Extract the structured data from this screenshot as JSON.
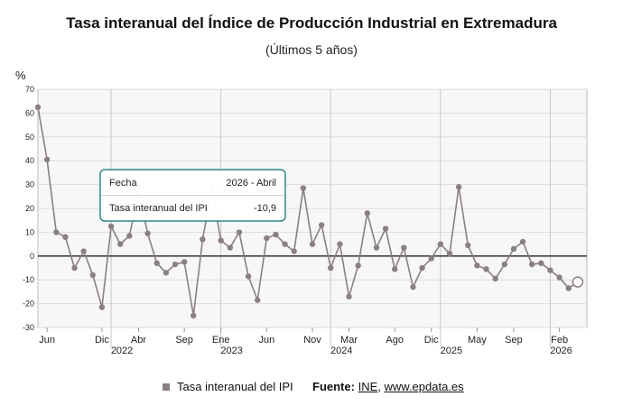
{
  "header": {
    "title": "Tasa interanual del Índice de Producción Industrial en Extremadura",
    "subtitle": "(Últimos 5 años)",
    "y_unit": "%"
  },
  "legend": {
    "label": "Tasa interanual del IPI"
  },
  "source": {
    "label": "Fuente:",
    "ine": "INE",
    "sep": ",",
    "site": "www.epdata.es"
  },
  "tooltip": {
    "row1_label": "Fecha",
    "row1_value": "2026 - Abril",
    "row2_label": "Tasa interanual del IPI",
    "row2_value": "-10,9"
  },
  "colors": {
    "line": "#8a7f83",
    "zero": "#222222",
    "grid": "#dcdcdc",
    "plot_bg": "#f7f7f7",
    "tooltip_border": "#2b8a8a"
  },
  "chart_data": {
    "type": "line",
    "title": "Tasa interanual del Índice de Producción Industrial en Extremadura",
    "subtitle": "(Últimos 5 años)",
    "ylabel": "%",
    "ylim": [
      -30,
      70
    ],
    "yticks": [
      -30,
      -20,
      -10,
      0,
      10,
      20,
      30,
      40,
      50,
      60,
      70
    ],
    "x_start": "2021-05",
    "x_end": "2026-05",
    "grid": true,
    "legend_position": "bottom",
    "month_ticks": [
      {
        "label": "Jun",
        "x": "2021-06"
      },
      {
        "label": "Dic",
        "x": "2021-12"
      },
      {
        "label": "Abr",
        "x": "2022-04"
      },
      {
        "label": "Sep",
        "x": "2022-09"
      },
      {
        "label": "Ene",
        "x": "2023-01"
      },
      {
        "label": "Jun",
        "x": "2023-06"
      },
      {
        "label": "Nov",
        "x": "2023-11"
      },
      {
        "label": "Mar",
        "x": "2024-03"
      },
      {
        "label": "Ago",
        "x": "2024-08"
      },
      {
        "label": "Dic",
        "x": "2024-12"
      },
      {
        "label": "May",
        "x": "2025-05"
      },
      {
        "label": "Sep",
        "x": "2025-09"
      },
      {
        "label": "Feb",
        "x": "2026-02"
      }
    ],
    "year_ticks": [
      {
        "label": "2022",
        "x": "2022-01"
      },
      {
        "label": "2023",
        "x": "2023-01"
      },
      {
        "label": "2024",
        "x": "2024-01"
      },
      {
        "label": "2025",
        "x": "2025-01"
      },
      {
        "label": "2026",
        "x": "2026-01"
      }
    ],
    "series": [
      {
        "name": "Tasa interanual del IPI",
        "x": [
          "2021-05",
          "2021-06",
          "2021-07",
          "2021-08",
          "2021-09",
          "2021-10",
          "2021-11",
          "2021-12",
          "2022-01",
          "2022-02",
          "2022-03",
          "2022-04",
          "2022-05",
          "2022-06",
          "2022-07",
          "2022-08",
          "2022-09",
          "2022-10",
          "2022-11",
          "2022-12",
          "2023-01",
          "2023-02",
          "2023-03",
          "2023-04",
          "2023-05",
          "2023-06",
          "2023-07",
          "2023-08",
          "2023-09",
          "2023-10",
          "2023-11",
          "2023-12",
          "2024-01",
          "2024-02",
          "2024-03",
          "2024-04",
          "2024-05",
          "2024-06",
          "2024-07",
          "2024-08",
          "2024-09",
          "2024-10",
          "2024-11",
          "2024-12",
          "2025-01",
          "2025-02",
          "2025-03",
          "2025-04",
          "2025-05",
          "2025-06",
          "2025-07",
          "2025-08",
          "2025-09",
          "2025-10",
          "2025-11",
          "2025-12",
          "2026-01",
          "2026-02",
          "2026-03",
          "2026-04"
        ],
        "values": [
          62.5,
          40.5,
          10,
          8,
          -5,
          2,
          -8,
          -21.5,
          12.5,
          5,
          8.5,
          26.5,
          9.5,
          -3,
          -7,
          -3.5,
          -2.5,
          -25,
          7,
          28,
          6.5,
          3.5,
          10,
          -8.5,
          -18.5,
          7.5,
          9,
          5,
          2,
          28.5,
          5,
          13,
          -5,
          5,
          -17,
          -4,
          18,
          3.5,
          11.5,
          -5.5,
          3.5,
          -13,
          -5,
          -1,
          5,
          1,
          29,
          4.5,
          -4,
          -5.5,
          -9.5,
          -3.5,
          3,
          6,
          -3.5,
          -3,
          -6,
          -9,
          -13.5,
          -10.9
        ]
      }
    ]
  }
}
